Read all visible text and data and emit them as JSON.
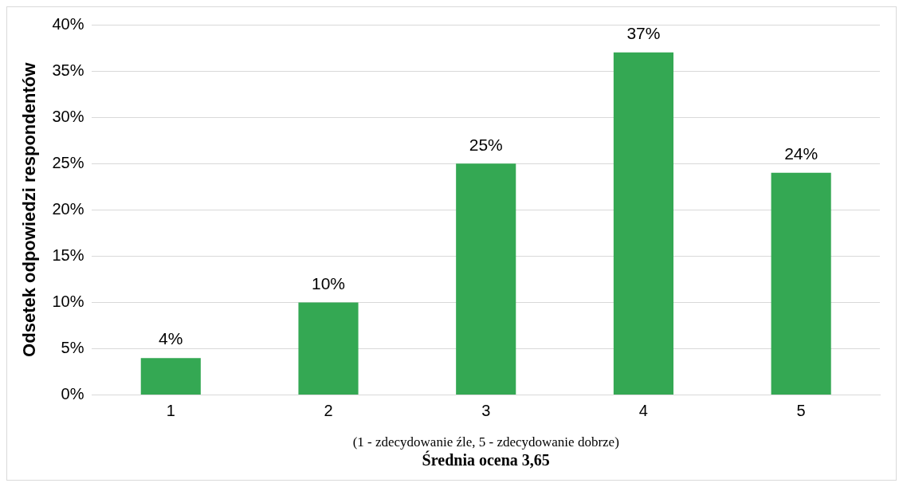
{
  "chart_data": {
    "type": "bar",
    "categories": [
      "1",
      "2",
      "3",
      "4",
      "5"
    ],
    "values": [
      4,
      10,
      25,
      37,
      24
    ],
    "value_labels": [
      "4%",
      "10%",
      "25%",
      "37%",
      "24%"
    ],
    "color": "#34a853",
    "ylabel": "Odsetek odpowiedzi respondentów",
    "xlabel": "(1 - zdecydowanie źle, 5 - zdecydowanie dobrze)",
    "annotations": [
      "Średnia ocena 3,65"
    ],
    "ylim": [
      0,
      40
    ],
    "yticks": [
      {
        "value": 0,
        "label": "0%"
      },
      {
        "value": 5,
        "label": "5%"
      },
      {
        "value": 10,
        "label": "10%"
      },
      {
        "value": 15,
        "label": "15%"
      },
      {
        "value": 20,
        "label": "20%"
      },
      {
        "value": 25,
        "label": "25%"
      },
      {
        "value": 30,
        "label": "30%"
      },
      {
        "value": 35,
        "label": "35%"
      },
      {
        "value": 40,
        "label": "40%"
      }
    ],
    "grid": "y",
    "legend": false
  }
}
